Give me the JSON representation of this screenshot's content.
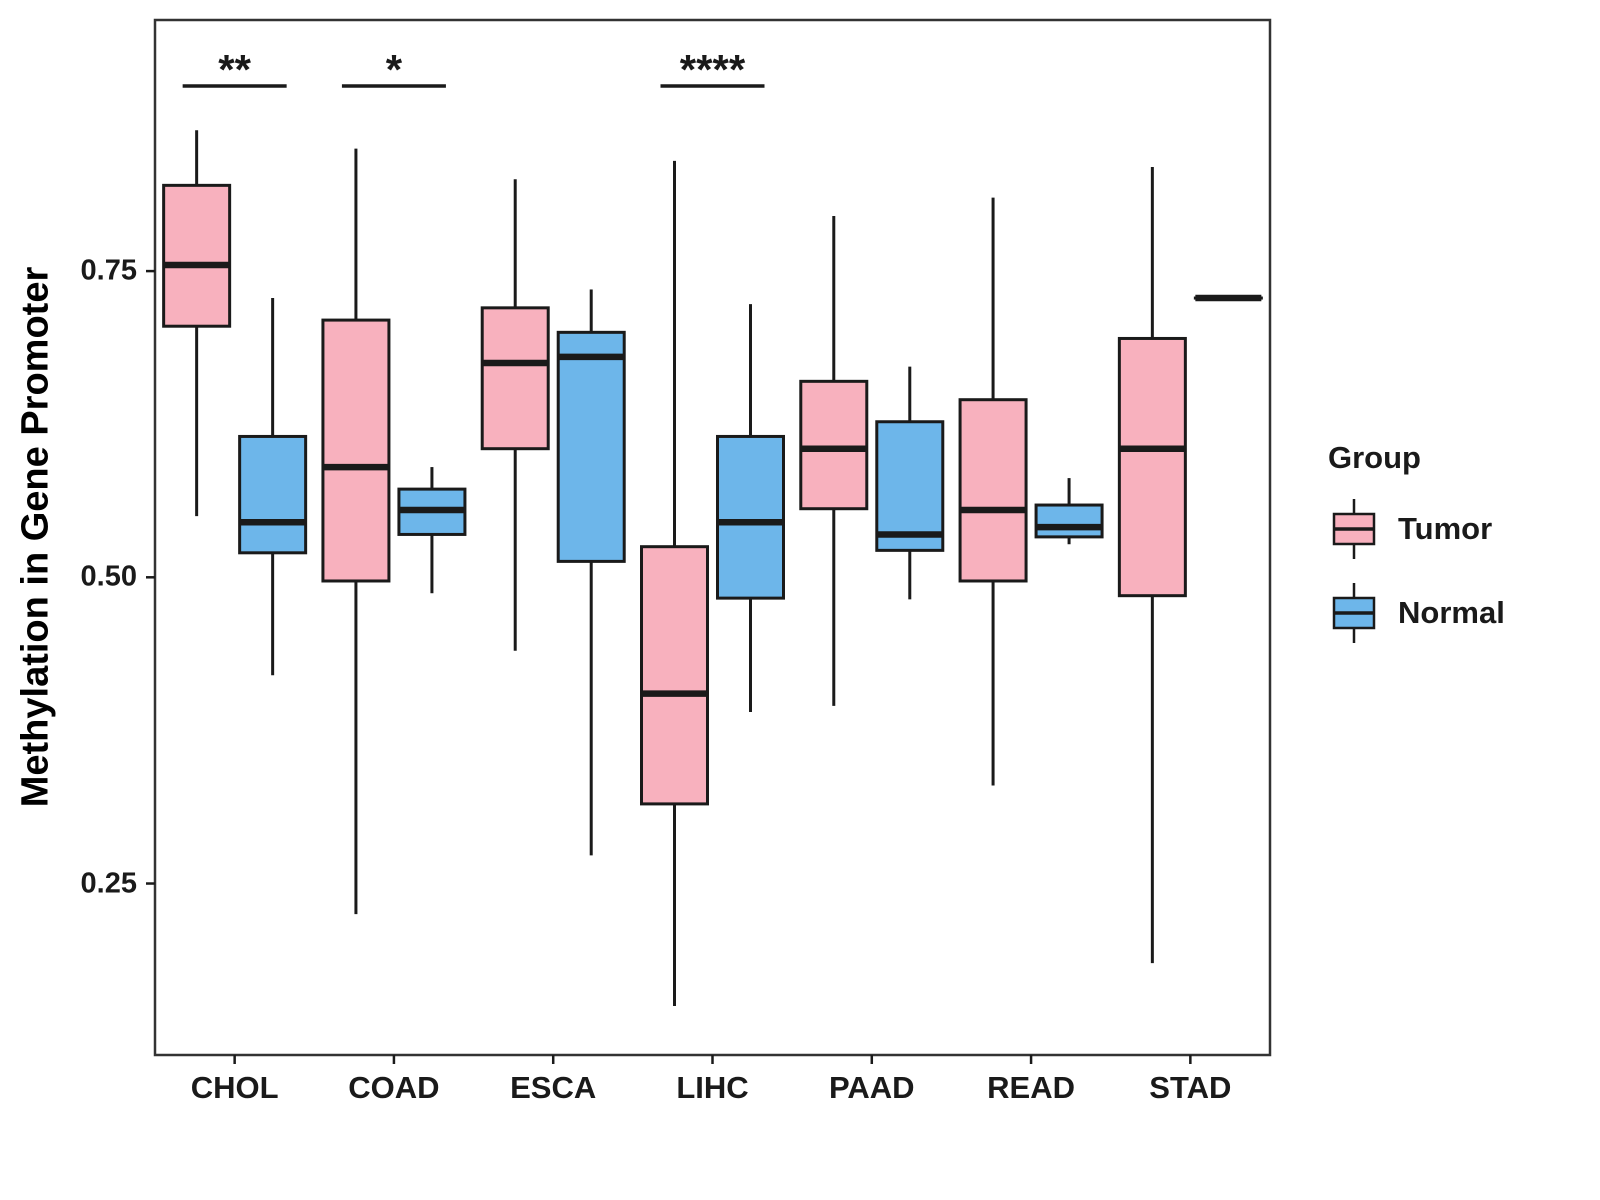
{
  "chart_data": {
    "type": "boxplot",
    "title": "",
    "xlabel": "",
    "ylabel": "Methylation in Gene Promoter",
    "categories": [
      "CHOL",
      "COAD",
      "ESCA",
      "LIHC",
      "PAAD",
      "READ",
      "STAD"
    ],
    "ylim": [
      0.11,
      0.955
    ],
    "yticks": [
      0.25,
      0.5,
      0.75
    ],
    "ytick_labels": [
      "0.25",
      "0.50",
      "0.75"
    ],
    "grid": "off",
    "legend": {
      "title": "Group",
      "position": "right"
    },
    "groups": [
      {
        "name": "Tumor",
        "fill": "#F8B1BE"
      },
      {
        "name": "Normal",
        "fill": "#6DB6EA"
      }
    ],
    "series": [
      {
        "name": "Tumor",
        "boxes": [
          {
            "category": "CHOL",
            "min": 0.55,
            "q1": 0.705,
            "median": 0.755,
            "q3": 0.82,
            "max": 0.865
          },
          {
            "category": "COAD",
            "min": 0.225,
            "q1": 0.497,
            "median": 0.59,
            "q3": 0.71,
            "max": 0.85
          },
          {
            "category": "ESCA",
            "min": 0.44,
            "q1": 0.605,
            "median": 0.675,
            "q3": 0.72,
            "max": 0.825
          },
          {
            "category": "LIHC",
            "min": 0.15,
            "q1": 0.315,
            "median": 0.405,
            "q3": 0.525,
            "max": 0.84
          },
          {
            "category": "PAAD",
            "min": 0.395,
            "q1": 0.556,
            "median": 0.605,
            "q3": 0.66,
            "max": 0.795
          },
          {
            "category": "READ",
            "min": 0.33,
            "q1": 0.497,
            "median": 0.555,
            "q3": 0.645,
            "max": 0.81
          },
          {
            "category": "STAD",
            "min": 0.185,
            "q1": 0.485,
            "median": 0.605,
            "q3": 0.695,
            "max": 0.835
          }
        ]
      },
      {
        "name": "Normal",
        "boxes": [
          {
            "category": "CHOL",
            "min": 0.42,
            "q1": 0.52,
            "median": 0.545,
            "q3": 0.615,
            "max": 0.728
          },
          {
            "category": "COAD",
            "min": 0.487,
            "q1": 0.535,
            "median": 0.555,
            "q3": 0.572,
            "max": 0.59
          },
          {
            "category": "ESCA",
            "min": 0.273,
            "q1": 0.513,
            "median": 0.68,
            "q3": 0.7,
            "max": 0.735
          },
          {
            "category": "LIHC",
            "min": 0.39,
            "q1": 0.483,
            "median": 0.545,
            "q3": 0.615,
            "max": 0.723
          },
          {
            "category": "PAAD",
            "min": 0.482,
            "q1": 0.522,
            "median": 0.535,
            "q3": 0.627,
            "max": 0.672
          },
          {
            "category": "READ",
            "min": 0.527,
            "q1": 0.533,
            "median": 0.541,
            "q3": 0.559,
            "max": 0.581
          },
          {
            "category": "STAD",
            "min": 0.728,
            "q1": 0.728,
            "median": 0.728,
            "q3": 0.728,
            "max": 0.728
          }
        ]
      }
    ],
    "significance": [
      {
        "category": "CHOL",
        "label": "**"
      },
      {
        "category": "COAD",
        "label": "*"
      },
      {
        "category": "LIHC",
        "label": "****"
      }
    ],
    "style": {
      "box_border": "#1A1A1A",
      "panel_border": "#333333",
      "text_color": "#1A1A1A",
      "panel_background": "#FFFFFF"
    }
  }
}
